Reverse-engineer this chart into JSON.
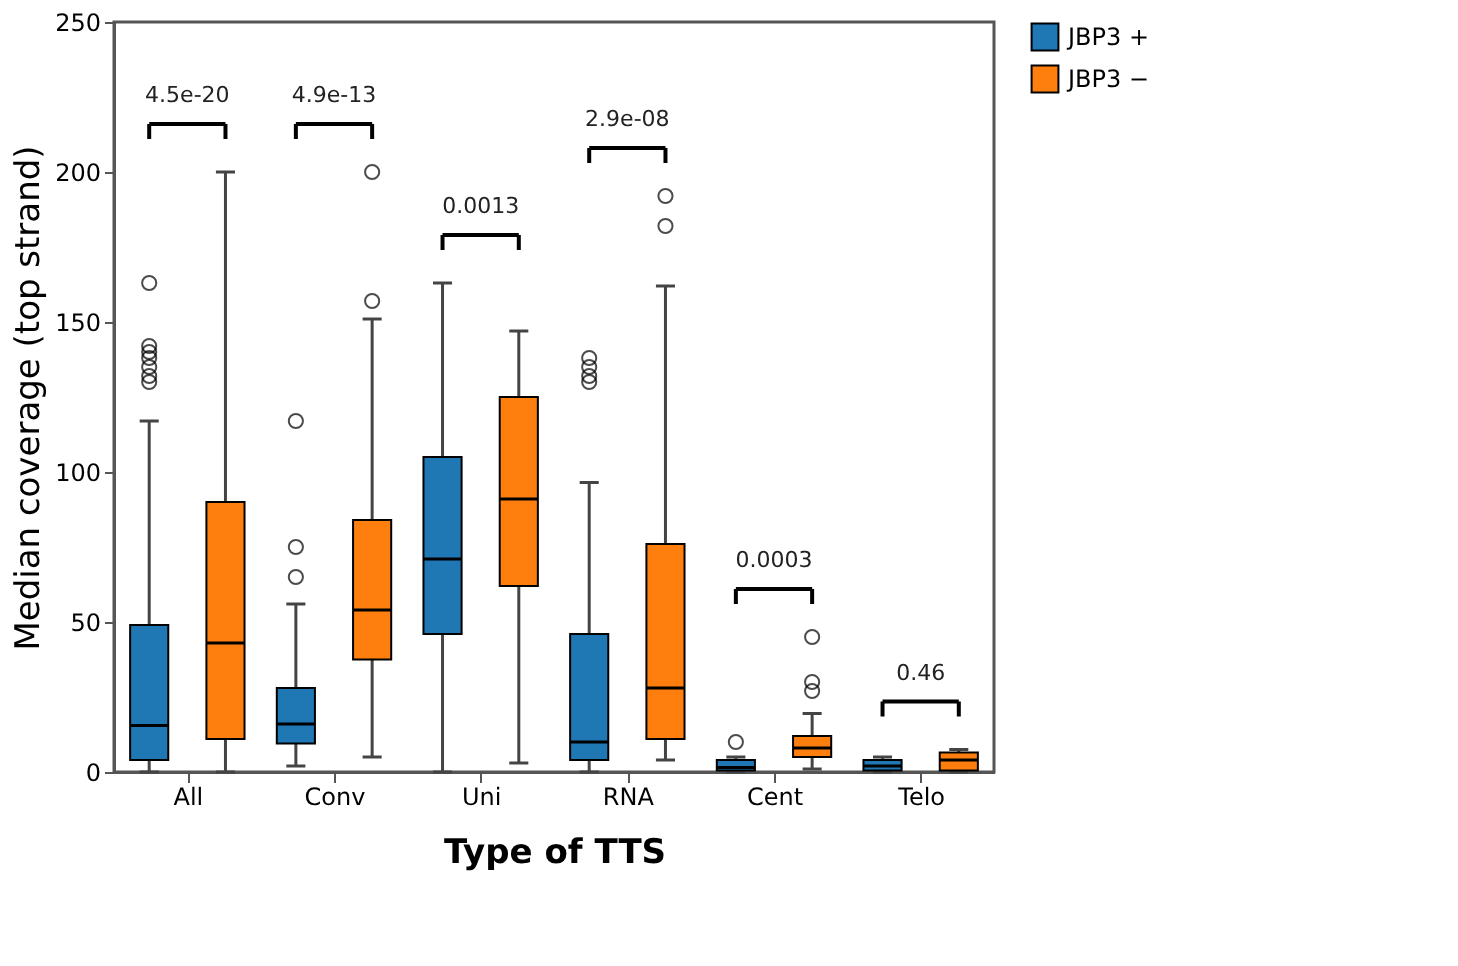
{
  "chart_data": {
    "type": "box",
    "xlabel": "Type of TTS",
    "ylabel": "Median coverage (top strand)",
    "categories": [
      "All",
      "Conv",
      "Uni",
      "RNA",
      "Cent",
      "Telo"
    ],
    "ylim": [
      0,
      250
    ],
    "yticks": [
      0,
      50,
      100,
      150,
      200,
      250
    ],
    "grid": false,
    "legend": "top right",
    "series": [
      {
        "name": "JBP3 +",
        "color": "#1f77b4",
        "boxes": [
          {
            "low": 0,
            "q1": 4,
            "median": 15.5,
            "q3": 49,
            "high": 117,
            "outliers": [
              163,
              142,
              140,
              138,
              135,
              132,
              130
            ]
          },
          {
            "low": 2,
            "q1": 9.5,
            "median": 16,
            "q3": 28,
            "high": 56,
            "outliers": [
              117,
              75,
              65
            ]
          },
          {
            "low": 0,
            "q1": 46,
            "median": 71,
            "q3": 105,
            "high": 163
          },
          {
            "low": 0,
            "q1": 4,
            "median": 10,
            "q3": 46,
            "high": 96.5,
            "outliers": [
              138,
              135,
              132,
              130
            ]
          },
          {
            "low": 0,
            "q1": 0.5,
            "median": 1.5,
            "q3": 4,
            "high": 5,
            "outliers": [
              10
            ]
          },
          {
            "low": 0,
            "q1": 0.5,
            "median": 2,
            "q3": 4,
            "high": 5
          }
        ]
      },
      {
        "name": "JBP3 −",
        "color": "#ff7f0e",
        "boxes": [
          {
            "low": 0,
            "q1": 11,
            "median": 43,
            "q3": 90,
            "high": 200
          },
          {
            "low": 5,
            "q1": 37.5,
            "median": 54,
            "q3": 84,
            "high": 151,
            "outliers": [
              157,
              200
            ]
          },
          {
            "low": 3,
            "q1": 62,
            "median": 91,
            "q3": 125,
            "high": 147
          },
          {
            "low": 4,
            "q1": 11,
            "median": 28,
            "q3": 76,
            "high": 162,
            "outliers": [
              192,
              182
            ]
          },
          {
            "low": 1,
            "q1": 5,
            "median": 8,
            "q3": 12,
            "high": 19.5,
            "outliers": [
              45,
              30,
              27
            ]
          },
          {
            "low": 0,
            "q1": 0.5,
            "median": 4,
            "q3": 6.5,
            "high": 7.5
          }
        ]
      }
    ],
    "annotations": [
      "4.5e-20",
      "4.9e-13",
      "0.0013",
      "2.9e-08",
      "0.0003",
      "0.46"
    ]
  }
}
